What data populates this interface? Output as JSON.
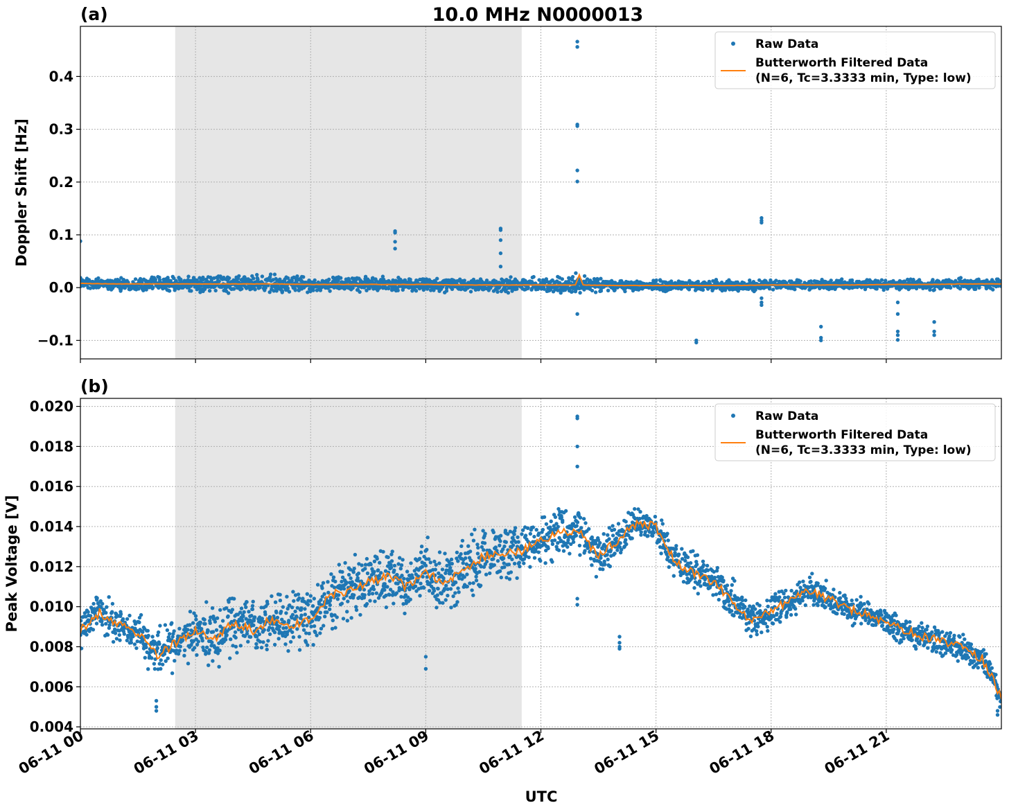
{
  "figure": {
    "title": "10.0 MHz N0000013",
    "xlabel": "UTC",
    "x_tick_labels": [
      "06-11 00",
      "06-11 03",
      "06-11 06",
      "06-11 09",
      "06-11 12",
      "06-11 15",
      "06-11 18",
      "06-11 21"
    ],
    "legend": {
      "raw": "Raw Data",
      "filtered_line1": "Butterworth Filtered Data",
      "filtered_line2": "(N=6, Tc=3.3333 min, Type: low)"
    },
    "colors": {
      "raw": "#1f77b4",
      "filtered": "#ff7f0e",
      "shade": "#e6e6e6",
      "grid": "#b0b0b0"
    }
  },
  "chart_data": [
    {
      "type": "scatter",
      "panel_label": "(a)",
      "ylabel": "Doppler Shift [Hz]",
      "y_tick_labels": [
        "−0.1",
        "0.0",
        "0.1",
        "0.2",
        "0.3",
        "0.4"
      ],
      "y_ticks": [
        -0.1,
        0.0,
        0.1,
        0.2,
        0.3,
        0.4
      ],
      "xlim": [
        0,
        24
      ],
      "ylim": [
        -0.135,
        0.495
      ],
      "grid": true,
      "legend_position": "top-right",
      "shaded_x": [
        2.47,
        11.5
      ],
      "series": [
        {
          "name": "Raw Data",
          "kind": "points",
          "x": [
            0,
            1,
            2,
            3,
            4,
            5,
            6,
            7,
            8,
            9,
            10,
            11,
            12,
            13,
            14,
            15,
            16,
            17,
            18,
            19,
            20,
            21,
            22,
            23,
            24
          ],
          "y": [
            0.008,
            0.007,
            0.007,
            0.007,
            0.007,
            0.007,
            0.006,
            0.006,
            0.006,
            0.006,
            0.005,
            0.005,
            0.005,
            0.005,
            0.004,
            0.004,
            0.004,
            0.004,
            0.005,
            0.005,
            0.005,
            0.006,
            0.006,
            0.007,
            0.007
          ],
          "spread": [
            0.013,
            0.014,
            0.016,
            0.018,
            0.019,
            0.019,
            0.018,
            0.017,
            0.016,
            0.015,
            0.015,
            0.015,
            0.018,
            0.022,
            0.012,
            0.011,
            0.011,
            0.011,
            0.011,
            0.011,
            0.011,
            0.011,
            0.012,
            0.012,
            0.013
          ],
          "outliers_x": [
            0.0,
            8.2,
            8.2,
            8.2,
            8.2,
            10.95,
            10.95,
            10.95,
            10.95,
            10.95,
            12.95,
            12.95,
            12.95,
            12.95,
            12.95,
            12.95,
            12.95,
            16.05,
            16.05,
            17.75,
            17.75,
            17.75,
            17.75,
            17.75,
            17.75,
            19.3,
            19.3,
            19.3,
            21.3,
            21.3,
            21.3,
            21.3,
            21.3,
            22.25,
            22.25,
            22.25
          ],
          "outliers_y": [
            0.088,
            0.107,
            0.104,
            0.087,
            0.074,
            0.112,
            0.109,
            0.09,
            0.065,
            0.04,
            0.466,
            0.456,
            0.309,
            0.306,
            0.222,
            0.201,
            -0.05,
            -0.1,
            -0.104,
            0.132,
            0.127,
            0.123,
            -0.02,
            -0.028,
            -0.033,
            -0.074,
            -0.095,
            -0.1,
            -0.028,
            -0.05,
            -0.083,
            -0.09,
            -0.099,
            -0.065,
            -0.083,
            -0.09
          ]
        },
        {
          "name": "Butterworth Filtered Data",
          "kind": "line",
          "x": [
            0,
            1,
            2,
            3,
            4,
            5,
            6,
            7,
            8,
            9,
            10,
            11,
            12,
            12.9,
            13.0,
            13.1,
            14,
            15,
            16,
            17,
            18,
            19,
            20,
            21,
            22,
            23,
            24
          ],
          "y": [
            0.008,
            0.007,
            0.007,
            0.007,
            0.007,
            0.007,
            0.006,
            0.006,
            0.006,
            0.006,
            0.005,
            0.005,
            0.005,
            0.005,
            0.024,
            0.005,
            0.004,
            0.004,
            0.004,
            0.004,
            0.005,
            0.005,
            0.005,
            0.006,
            0.006,
            0.007,
            0.007
          ]
        }
      ]
    },
    {
      "type": "scatter",
      "panel_label": "(b)",
      "ylabel": "Peak Voltage [V]",
      "y_tick_labels": [
        "0.004",
        "0.006",
        "0.008",
        "0.010",
        "0.012",
        "0.014",
        "0.016",
        "0.018",
        "0.020"
      ],
      "y_ticks": [
        0.004,
        0.006,
        0.008,
        0.01,
        0.012,
        0.014,
        0.016,
        0.018,
        0.02
      ],
      "xlim": [
        0,
        24
      ],
      "ylim": [
        0.0039,
        0.0204
      ],
      "grid": true,
      "legend_position": "top-right",
      "shaded_x": [
        2.47,
        11.5
      ],
      "series": [
        {
          "name": "Raw Data",
          "kind": "points",
          "x": [
            0,
            0.5,
            1,
            1.5,
            2,
            2.5,
            3,
            3.5,
            4,
            4.5,
            5,
            5.5,
            6,
            6.5,
            7,
            7.5,
            8,
            8.5,
            9,
            9.5,
            10,
            10.5,
            11,
            11.5,
            12,
            12.5,
            13,
            13.5,
            14,
            14.5,
            15,
            15.5,
            16,
            16.5,
            17,
            17.5,
            18,
            18.5,
            19,
            19.5,
            20,
            20.5,
            21,
            21.5,
            22,
            22.5,
            23,
            23.5,
            24
          ],
          "y": [
            0.0088,
            0.0097,
            0.0091,
            0.0087,
            0.0076,
            0.0082,
            0.0088,
            0.0084,
            0.0092,
            0.0088,
            0.0094,
            0.0091,
            0.0093,
            0.0106,
            0.0108,
            0.0112,
            0.0115,
            0.011,
            0.0117,
            0.0112,
            0.0118,
            0.0125,
            0.0127,
            0.0128,
            0.0133,
            0.0137,
            0.0138,
            0.0125,
            0.0133,
            0.0142,
            0.014,
            0.0122,
            0.0117,
            0.0112,
            0.0103,
            0.0092,
            0.0098,
            0.0103,
            0.0108,
            0.0104,
            0.0099,
            0.0096,
            0.0092,
            0.0088,
            0.0085,
            0.0083,
            0.0079,
            0.0074,
            0.0055
          ],
          "spread": [
            0.001,
            0.0011,
            0.0012,
            0.0012,
            0.0013,
            0.0015,
            0.0016,
            0.0017,
            0.0018,
            0.0018,
            0.0018,
            0.0018,
            0.0018,
            0.0018,
            0.0018,
            0.0018,
            0.0018,
            0.0018,
            0.0018,
            0.0017,
            0.0017,
            0.0017,
            0.0016,
            0.0015,
            0.0014,
            0.0014,
            0.0013,
            0.0013,
            0.0012,
            0.0011,
            0.001,
            0.0011,
            0.0012,
            0.0012,
            0.0012,
            0.0011,
            0.0011,
            0.001,
            0.0009,
            0.0009,
            0.0009,
            0.0008,
            0.0008,
            0.0008,
            0.0008,
            0.0008,
            0.0008,
            0.0008,
            0.0008
          ],
          "outliers_x": [
            1.98,
            1.98,
            1.98,
            12.95,
            12.95,
            12.95,
            12.95,
            12.95,
            12.95,
            14.05,
            14.05,
            14.05,
            14.05,
            9.0,
            9.0,
            23.9,
            23.9
          ],
          "outliers_y": [
            0.0048,
            0.005,
            0.0053,
            0.0195,
            0.0194,
            0.018,
            0.017,
            0.0104,
            0.0101,
            0.0079,
            0.008,
            0.0082,
            0.0085,
            0.0069,
            0.0075,
            0.0046,
            0.0048
          ]
        },
        {
          "name": "Butterworth Filtered Data",
          "kind": "line",
          "x": [
            0,
            0.5,
            1,
            1.5,
            2,
            2.5,
            3,
            3.5,
            4,
            4.5,
            5,
            5.5,
            6,
            6.5,
            7,
            7.5,
            8,
            8.5,
            9,
            9.5,
            10,
            10.5,
            11,
            11.5,
            12,
            12.5,
            13,
            13.5,
            14,
            14.5,
            15,
            15.5,
            16,
            16.5,
            17,
            17.5,
            18,
            18.5,
            19,
            19.5,
            20,
            20.5,
            21,
            21.5,
            22,
            22.5,
            23,
            23.5,
            24
          ],
          "y": [
            0.0088,
            0.0097,
            0.0091,
            0.0087,
            0.0076,
            0.0082,
            0.0088,
            0.0084,
            0.0092,
            0.0088,
            0.0094,
            0.0091,
            0.0093,
            0.0106,
            0.0108,
            0.0112,
            0.0115,
            0.011,
            0.0117,
            0.0112,
            0.0118,
            0.0125,
            0.0127,
            0.0128,
            0.0133,
            0.0137,
            0.0138,
            0.0125,
            0.0133,
            0.0142,
            0.014,
            0.0122,
            0.0117,
            0.0112,
            0.0103,
            0.0092,
            0.0098,
            0.0103,
            0.0108,
            0.0104,
            0.0099,
            0.0096,
            0.0092,
            0.0088,
            0.0085,
            0.0083,
            0.0079,
            0.0074,
            0.0055
          ]
        }
      ]
    }
  ]
}
